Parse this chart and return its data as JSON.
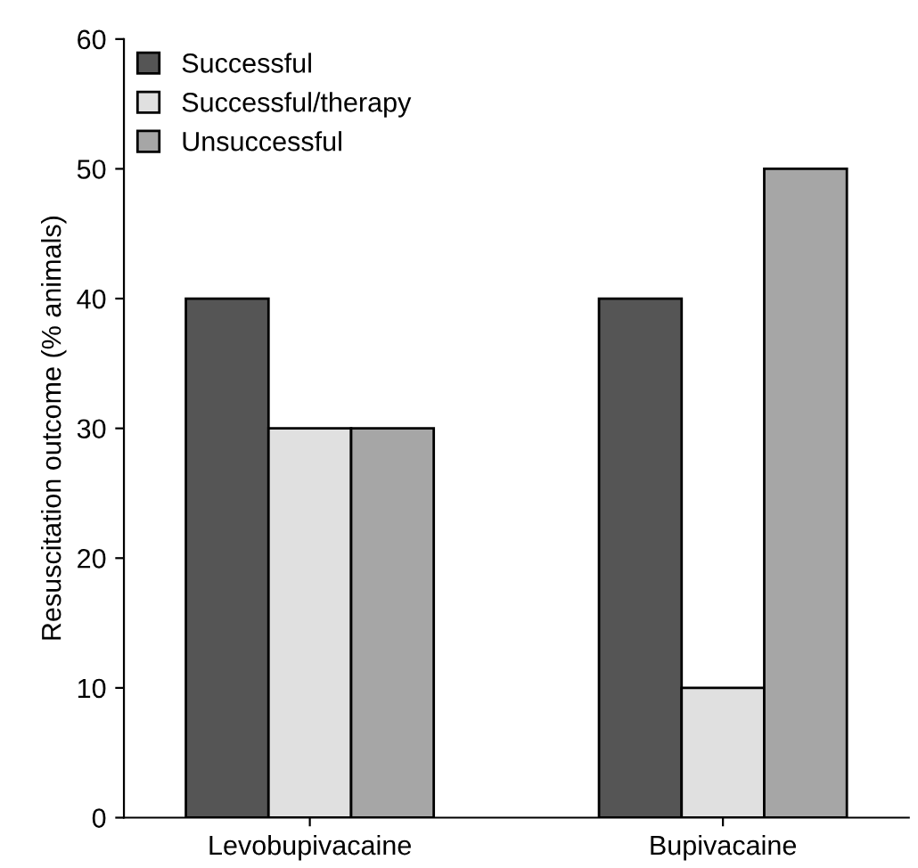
{
  "chart_data": {
    "type": "bar",
    "ylabel": "Resuscitation outcome (% animals)",
    "categories": [
      "Levobupivacaine",
      "Bupivacaine"
    ],
    "series": [
      {
        "name": "Successful",
        "color": "#555555",
        "values": [
          40,
          40
        ]
      },
      {
        "name": "Successful/therapy",
        "color": "#e0e0e0",
        "values": [
          30,
          10
        ]
      },
      {
        "name": "Unsuccessful",
        "color": "#a6a6a6",
        "values": [
          30,
          50
        ]
      }
    ],
    "ylim": [
      0,
      60
    ],
    "yticks": [
      0,
      10,
      20,
      30,
      40,
      50,
      60
    ],
    "grid": false,
    "legend": "top left"
  }
}
